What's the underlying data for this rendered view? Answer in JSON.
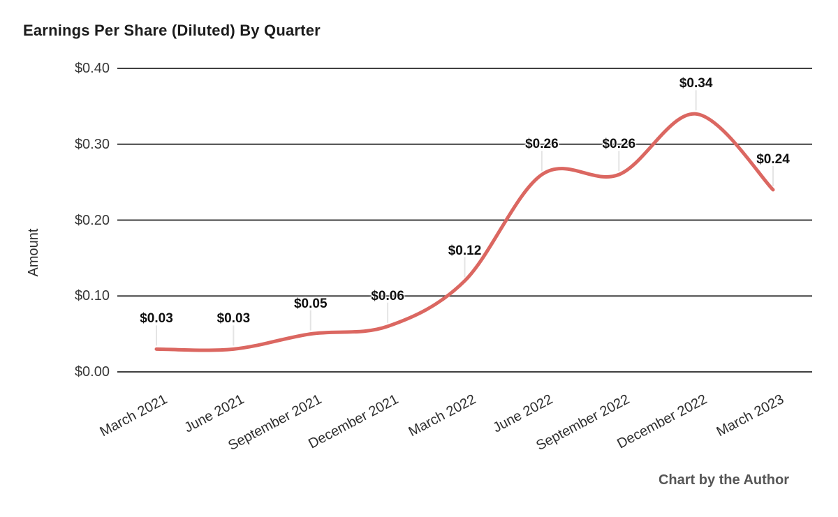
{
  "title": "Earnings Per Share (Diluted) By Quarter",
  "credit": "Chart by the Author",
  "colors": {
    "line": "#db6761",
    "grid": "#404040",
    "stem": "#e4e4e4",
    "background": "#ffffff"
  },
  "chart_data": {
    "type": "line",
    "title": "Earnings Per Share (Diluted) By Quarter",
    "xlabel": "",
    "ylabel": "Amount",
    "categories": [
      "March 2021",
      "June 2021",
      "September 2021",
      "December 2021",
      "March 2022",
      "June 2022",
      "September 2022",
      "December 2022",
      "March 2023"
    ],
    "series": [
      {
        "name": "Amount",
        "values": [
          0.03,
          0.03,
          0.05,
          0.06,
          0.12,
          0.26,
          0.26,
          0.34,
          0.24
        ]
      }
    ],
    "point_labels": [
      "$0.03",
      "$0.03",
      "$0.05",
      "$0.06",
      "$0.12",
      "$0.26",
      "$0.26",
      "$0.34",
      "$0.24"
    ],
    "y_ticks": [
      {
        "value": 0.0,
        "label": "$0.00"
      },
      {
        "value": 0.1,
        "label": "$0.10"
      },
      {
        "value": 0.2,
        "label": "$0.20"
      },
      {
        "value": 0.3,
        "label": "$0.30"
      },
      {
        "value": 0.4,
        "label": "$0.40"
      }
    ],
    "ylim": [
      0,
      0.4
    ],
    "grid": true,
    "legend": "none",
    "smooth": true,
    "annotations": "above-point-with-stem"
  }
}
